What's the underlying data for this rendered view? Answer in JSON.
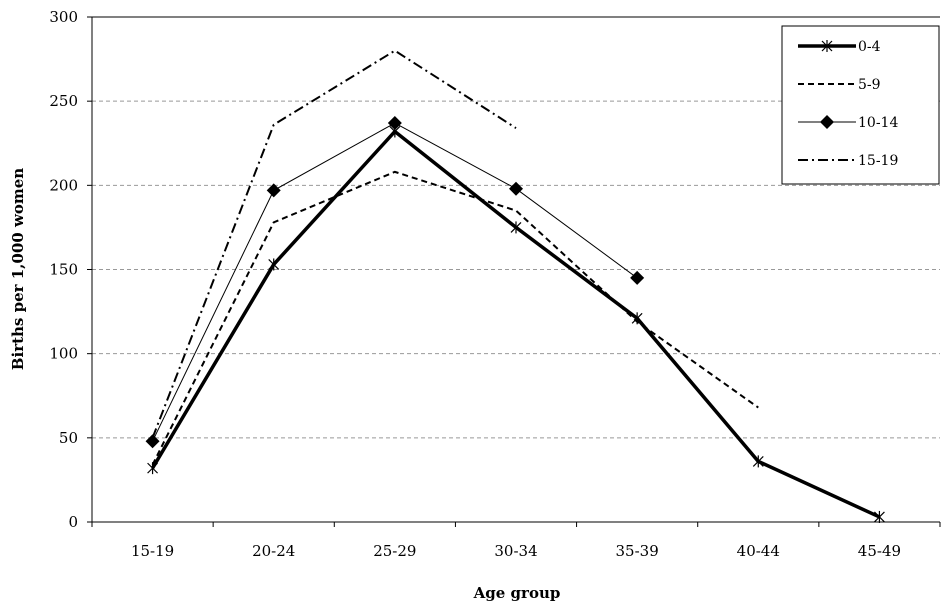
{
  "chart_data": {
    "type": "line",
    "xlabel": "Age group",
    "ylabel": "Births per 1,000 women",
    "ylim": [
      0,
      300
    ],
    "yticks": [
      0,
      50,
      100,
      150,
      200,
      250,
      300
    ],
    "grid": "horizontal-dashed",
    "legend_position": "top-right",
    "categories": [
      "15-19",
      "20-24",
      "25-29",
      "30-34",
      "35-39",
      "40-44",
      "45-49"
    ],
    "series": [
      {
        "name": "0-4",
        "style": "thick-solid-star",
        "values": [
          32,
          153,
          232,
          175,
          121,
          36,
          3
        ]
      },
      {
        "name": "5-9",
        "style": "dashed",
        "values": [
          34,
          178,
          208,
          185,
          119,
          68,
          null
        ]
      },
      {
        "name": "10-14",
        "style": "thin-solid-diamond",
        "values": [
          48,
          197,
          237,
          198,
          145,
          null,
          null
        ]
      },
      {
        "name": "15-19",
        "style": "dash-dot",
        "values": [
          50,
          236,
          280,
          234,
          null,
          null,
          null
        ]
      }
    ]
  }
}
